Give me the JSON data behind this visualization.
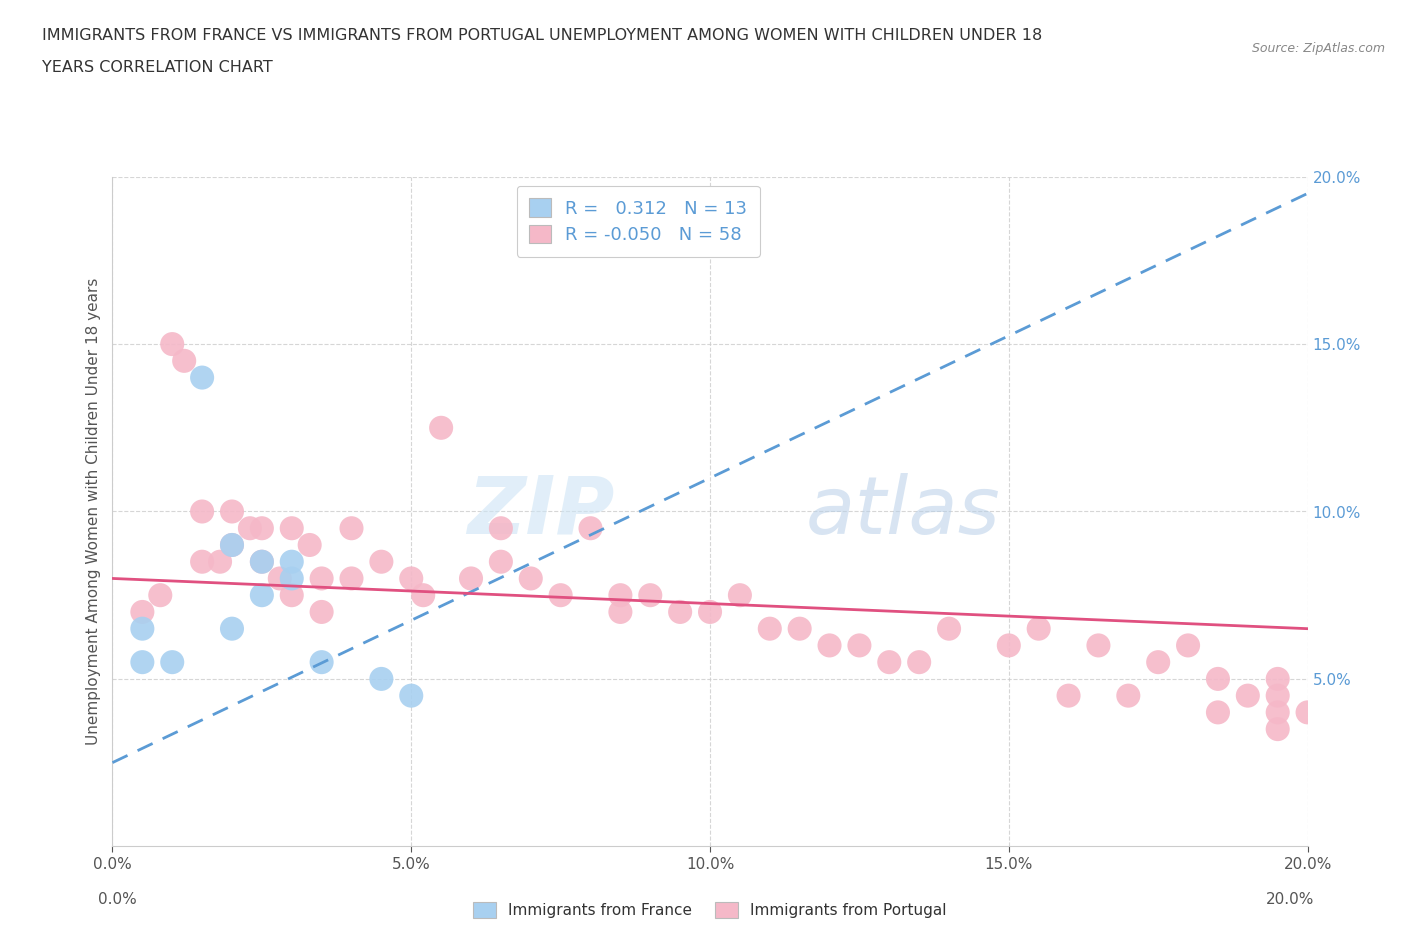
{
  "title_line1": "IMMIGRANTS FROM FRANCE VS IMMIGRANTS FROM PORTUGAL UNEMPLOYMENT AMONG WOMEN WITH CHILDREN UNDER 18",
  "title_line2": "YEARS CORRELATION CHART",
  "source": "Source: ZipAtlas.com",
  "ylabel": "Unemployment Among Women with Children Under 18 years",
  "xlim": [
    0.0,
    0.2
  ],
  "ylim": [
    0.0,
    0.2
  ],
  "xtick_labels": [
    "0.0%",
    "5.0%",
    "10.0%",
    "15.0%",
    "20.0%"
  ],
  "xtick_vals": [
    0.0,
    0.05,
    0.1,
    0.15,
    0.2
  ],
  "ytick_labels": [
    "5.0%",
    "10.0%",
    "15.0%",
    "20.0%"
  ],
  "ytick_vals": [
    0.05,
    0.1,
    0.15,
    0.2
  ],
  "france_color": "#a8d0f0",
  "portugal_color": "#f5b8c8",
  "france_line_color": "#5b9bd5",
  "portugal_line_color": "#e05080",
  "france_R": 0.312,
  "france_N": 13,
  "portugal_R": -0.05,
  "portugal_N": 58,
  "watermark_zip": "ZIP",
  "watermark_atlas": "atlas",
  "france_x": [
    0.005,
    0.005,
    0.01,
    0.015,
    0.02,
    0.02,
    0.025,
    0.025,
    0.03,
    0.03,
    0.035,
    0.045,
    0.05
  ],
  "france_y": [
    0.055,
    0.065,
    0.055,
    0.14,
    0.065,
    0.09,
    0.075,
    0.085,
    0.08,
    0.085,
    0.055,
    0.05,
    0.045
  ],
  "portugal_x": [
    0.005,
    0.008,
    0.01,
    0.012,
    0.015,
    0.015,
    0.018,
    0.02,
    0.02,
    0.023,
    0.025,
    0.025,
    0.028,
    0.03,
    0.03,
    0.033,
    0.035,
    0.035,
    0.04,
    0.04,
    0.045,
    0.05,
    0.052,
    0.055,
    0.06,
    0.065,
    0.065,
    0.07,
    0.075,
    0.08,
    0.085,
    0.085,
    0.09,
    0.095,
    0.1,
    0.105,
    0.11,
    0.115,
    0.12,
    0.125,
    0.13,
    0.135,
    0.14,
    0.15,
    0.155,
    0.16,
    0.165,
    0.17,
    0.175,
    0.18,
    0.185,
    0.185,
    0.19,
    0.195,
    0.195,
    0.195,
    0.195,
    0.2
  ],
  "portugal_y": [
    0.07,
    0.075,
    0.15,
    0.145,
    0.085,
    0.1,
    0.085,
    0.09,
    0.1,
    0.095,
    0.085,
    0.095,
    0.08,
    0.095,
    0.075,
    0.09,
    0.07,
    0.08,
    0.08,
    0.095,
    0.085,
    0.08,
    0.075,
    0.125,
    0.08,
    0.085,
    0.095,
    0.08,
    0.075,
    0.095,
    0.07,
    0.075,
    0.075,
    0.07,
    0.07,
    0.075,
    0.065,
    0.065,
    0.06,
    0.06,
    0.055,
    0.055,
    0.065,
    0.06,
    0.065,
    0.045,
    0.06,
    0.045,
    0.055,
    0.06,
    0.05,
    0.04,
    0.045,
    0.05,
    0.045,
    0.04,
    0.035,
    0.04
  ],
  "france_line_x": [
    0.0,
    0.2
  ],
  "france_line_y": [
    0.025,
    0.195
  ],
  "portugal_line_x": [
    0.0,
    0.2
  ],
  "portugal_line_y": [
    0.08,
    0.065
  ]
}
